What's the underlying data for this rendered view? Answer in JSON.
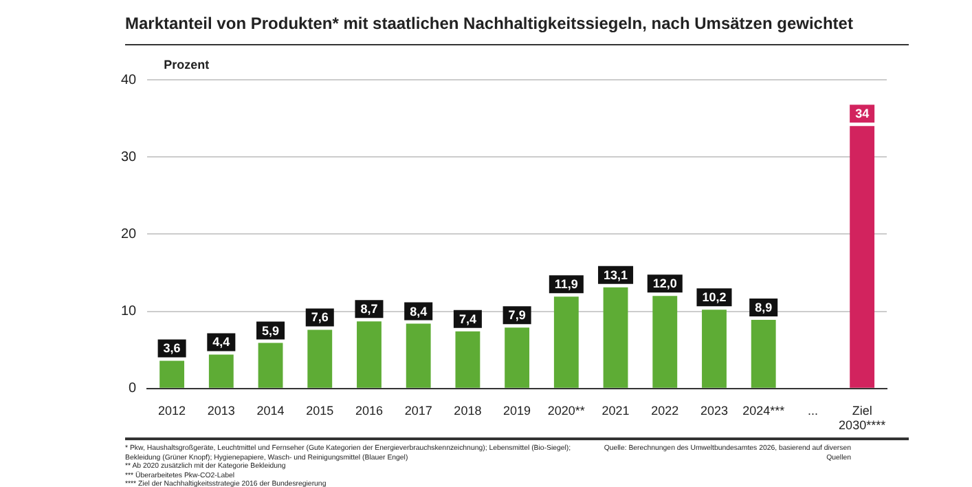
{
  "chart_data": {
    "type": "bar",
    "title": "Marktanteil von Produkten* mit staatlichen Nachhaltigkeitssiegeln, nach Umsätzen gewichtet",
    "ylabel": "Prozent",
    "categories": [
      "2012",
      "2013",
      "2014",
      "2015",
      "2016",
      "2017",
      "2018",
      "2019",
      "2020**",
      "2021",
      "2022",
      "2023",
      "2024***",
      "...",
      "Ziel 2030****"
    ],
    "values": [
      3.6,
      4.4,
      5.9,
      7.6,
      8.7,
      8.4,
      7.4,
      7.9,
      11.9,
      13.1,
      12.0,
      10.2,
      8.9,
      null,
      34
    ],
    "value_labels": [
      "3,6",
      "4,4",
      "5,9",
      "7,6",
      "8,7",
      "8,4",
      "7,4",
      "7,9",
      "11,9",
      "13,1",
      "12,0",
      "10,2",
      "8,9",
      null,
      "34"
    ],
    "colors": [
      "#5eac35",
      "#5eac35",
      "#5eac35",
      "#5eac35",
      "#5eac35",
      "#5eac35",
      "#5eac35",
      "#5eac35",
      "#5eac35",
      "#5eac35",
      "#5eac35",
      "#5eac35",
      "#5eac35",
      "#5eac35",
      "#d2235e"
    ],
    "ylim": [
      0,
      40
    ],
    "yticks": [
      0,
      10,
      20,
      30,
      40
    ],
    "grid": "y",
    "legend": false,
    "annotations": [
      "* Pkw, Haushaltsgroßgeräte, Leuchtmittel und Fernseher (Gute Kategorien der Energieverbrauchskennzeichnung); Lebensmittel (Bio-Siegel); Bekleidung (Grüner Knopf); Hygienepapiere, Wasch- und Reinigungsmittel (Blauer Engel)",
      "** Ab 2020 zusätzlich mit der Kategorie Bekleidung",
      "*** Überarbeitetes Pkw-CO2-Label",
      "**** Ziel der Nachhaltigkeitsstrategie 2016 der Bundesregierung",
      "Quelle: Berechnungen des Umweltbundesamtes 2026, basierend auf diversen Quellen"
    ]
  }
}
